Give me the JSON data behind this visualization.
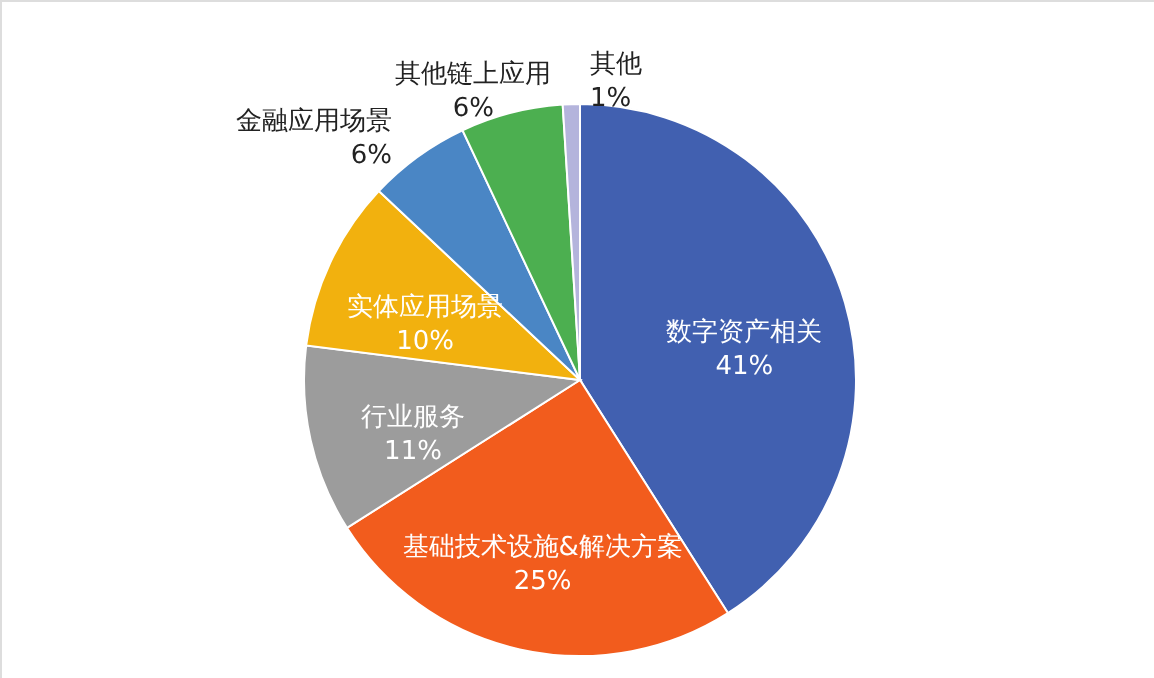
{
  "chart_data": {
    "type": "pie",
    "categories": [
      "数字资产相关",
      "基础技术设施&解决方案",
      "行业服务",
      "实体应用场景",
      "金融应用场景",
      "其他链上应用",
      "其他"
    ],
    "values": [
      41,
      25,
      11,
      10,
      6,
      6,
      1
    ],
    "colors": [
      "#4160b0",
      "#f25c1d",
      "#9c9c9c",
      "#f2b10e",
      "#4a86c5",
      "#4caf50",
      "#b4b4dc"
    ],
    "value_labels": [
      "41%",
      "25%",
      "11%",
      "10%",
      "6%",
      "6%",
      "1%"
    ]
  }
}
